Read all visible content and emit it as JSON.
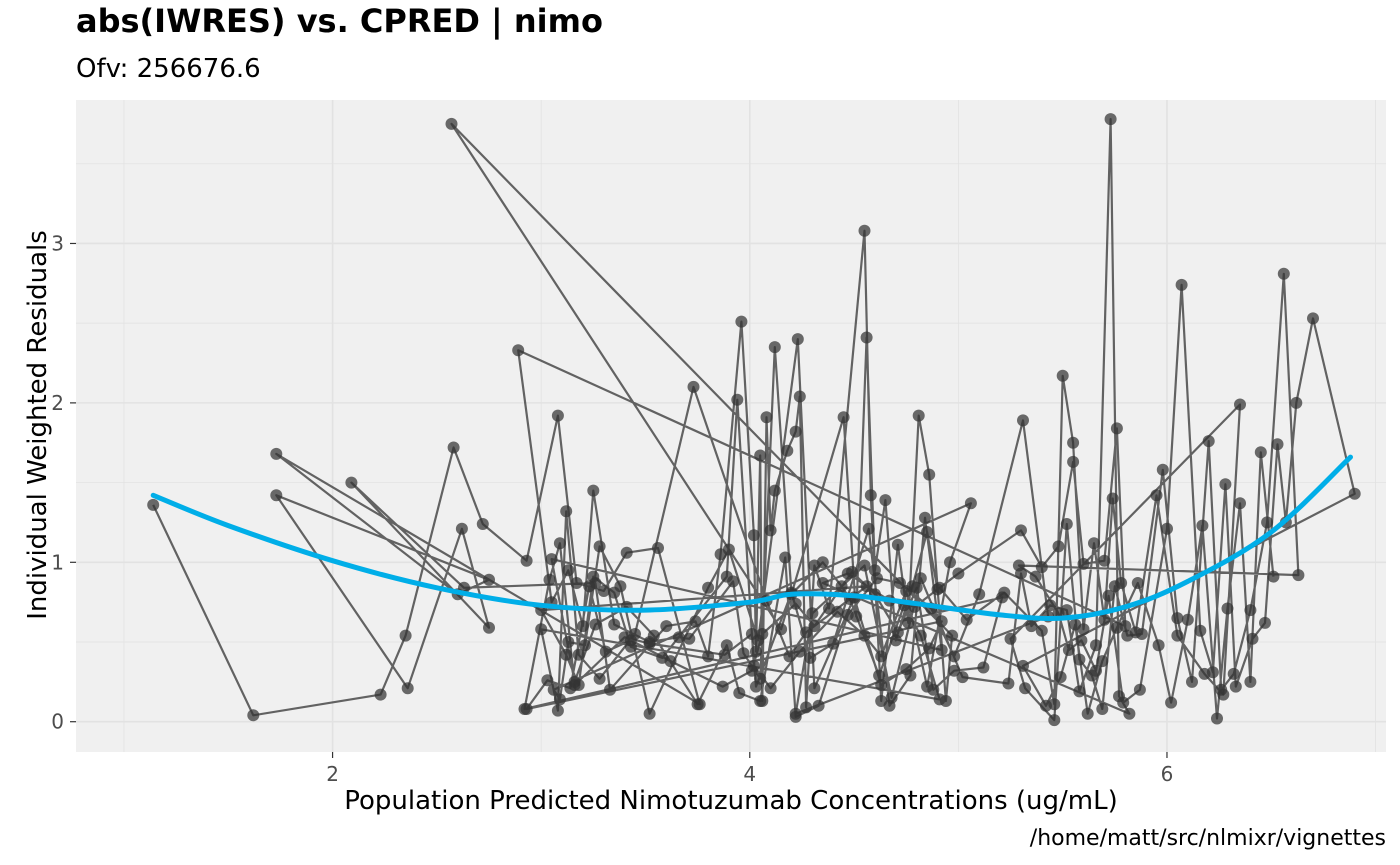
{
  "title": "abs(IWRES) vs. CPRED | nimo",
  "subtitle": "Ofv: 256676.6",
  "caption": "/home/matt/src/nlmixr/vignettes",
  "colors": {
    "panel": "#f0f0f0",
    "grid": "#e2e2e2",
    "points": "#333333",
    "smooth": "#00aee8"
  },
  "chart_data": {
    "type": "scatter",
    "title": "abs(IWRES) vs. CPRED | nimo",
    "subtitle": "Ofv: 256676.6",
    "xlabel": "Population Predicted Nimotuzumab Concentrations (ug/mL)",
    "ylabel": "Individual Weighted Residuals",
    "xlim": [
      0.77,
      7.05
    ],
    "ylim": [
      -0.19,
      3.9
    ],
    "x_ticks": [
      2,
      4,
      6
    ],
    "x_tick_labels": [
      "2",
      "4",
      "6"
    ],
    "y_ticks": [
      0,
      1,
      2,
      3
    ],
    "y_tick_labels": [
      "0",
      "1",
      "2",
      "3"
    ],
    "grid": true,
    "legend": "none",
    "series": [
      {
        "values": [
          [
            1.14,
            1.36
          ],
          [
            1.62,
            0.04
          ],
          [
            2.23,
            0.17
          ],
          [
            2.35,
            0.54
          ],
          [
            2.58,
            1.72
          ],
          [
            2.72,
            1.24
          ],
          [
            2.93,
            1.01
          ],
          [
            3.08,
            1.92
          ],
          [
            3.17,
            0.87
          ],
          [
            3.3,
            0.82
          ],
          [
            3.41,
            1.06
          ],
          [
            3.56,
            1.09
          ],
          [
            3.76,
            0.11
          ],
          [
            1.73,
            1.68
          ],
          [
            2.6,
            0.8
          ],
          [
            2.75,
            0.89
          ],
          [
            1.73,
            1.42
          ],
          [
            2.36,
            0.21
          ],
          [
            2.62,
            1.21
          ],
          [
            2.75,
            0.59
          ],
          [
            2.09,
            1.5
          ],
          [
            2.63,
            0.84
          ],
          [
            3.26,
            0.87
          ],
          [
            3.33,
            0.2
          ],
          [
            3.6,
            0.6
          ],
          [
            3.74,
            0.63
          ],
          [
            3.8,
            0.41
          ],
          [
            3.86,
            1.05
          ],
          [
            3.96,
            2.51
          ],
          [
            4.02,
            1.17
          ],
          [
            4.03,
            0.44
          ],
          [
            4.05,
            1.67
          ],
          [
            4.06,
            0.13
          ],
          [
            4.08,
            1.91
          ],
          [
            4.1,
            1.2
          ],
          [
            4.12,
            1.45
          ],
          [
            4.18,
            1.7
          ],
          [
            4.22,
            1.82
          ],
          [
            4.24,
            2.04
          ],
          [
            4.27,
            0.09
          ],
          [
            4.31,
            0.98
          ],
          [
            4.38,
            0.71
          ],
          [
            4.55,
            3.08
          ],
          [
            4.58,
            1.42
          ],
          [
            4.63,
            0.13
          ],
          [
            4.71,
            1.11
          ],
          [
            4.76,
            0.62
          ],
          [
            4.81,
            1.92
          ],
          [
            4.86,
            1.55
          ],
          [
            4.94,
            0.13
          ],
          [
            4.97,
            0.54
          ],
          [
            2.57,
            3.75
          ],
          [
            4.15,
            0.58
          ],
          [
            4.45,
            1.91
          ],
          [
            4.51,
            0.66
          ],
          [
            4.56,
            2.41
          ],
          [
            4.6,
            0.95
          ],
          [
            4.65,
            1.39
          ],
          [
            4.7,
            0.51
          ],
          [
            4.78,
            0.85
          ],
          [
            4.85,
            1.19
          ],
          [
            4.9,
            0.83
          ],
          [
            5.0,
            0.93
          ],
          [
            5.3,
            1.2
          ],
          [
            5.4,
            0.97
          ],
          [
            5.48,
            1.1
          ],
          [
            5.55,
            1.63
          ],
          [
            5.6,
            0.99
          ],
          [
            5.7,
            1.01
          ],
          [
            5.76,
            1.84
          ],
          [
            5.8,
            0.6
          ],
          [
            2.89,
            2.33
          ],
          [
            3.05,
            0.75
          ],
          [
            3.13,
            0.95
          ],
          [
            3.2,
            0.6
          ],
          [
            3.25,
            1.45
          ],
          [
            3.35,
            0.61
          ],
          [
            3.52,
            0.5
          ],
          [
            3.66,
            0.53
          ],
          [
            3.71,
            0.52
          ],
          [
            3.92,
            0.88
          ],
          [
            3.97,
            0.43
          ],
          [
            4.05,
            0.27
          ],
          [
            4.12,
            2.35
          ],
          [
            4.2,
            0.8
          ],
          [
            4.35,
            1.0
          ],
          [
            4.44,
            0.85
          ],
          [
            4.48,
            0.77
          ],
          [
            4.62,
            0.29
          ],
          [
            4.74,
            0.73
          ],
          [
            4.82,
            0.54
          ],
          [
            4.91,
            0.14
          ],
          [
            3.0,
            0.58
          ],
          [
            3.08,
            0.07
          ],
          [
            3.12,
            1.32
          ],
          [
            3.18,
            0.42
          ],
          [
            3.28,
            0.27
          ],
          [
            3.45,
            0.55
          ],
          [
            3.73,
            2.1
          ],
          [
            4.08,
            0.76
          ],
          [
            4.19,
            0.41
          ],
          [
            4.27,
            0.56
          ],
          [
            4.56,
            0.85
          ],
          [
            3.0,
            0.7
          ],
          [
            3.12,
            0.42
          ],
          [
            3.18,
            0.23
          ],
          [
            3.25,
            0.91
          ],
          [
            3.35,
            0.81
          ],
          [
            3.43,
            0.47
          ],
          [
            3.58,
            0.4
          ],
          [
            3.89,
            0.91
          ],
          [
            3.94,
            2.02
          ],
          [
            4.02,
            0.35
          ],
          [
            4.1,
            0.21
          ],
          [
            4.24,
            0.44
          ],
          [
            4.42,
            0.69
          ],
          [
            4.55,
            0.54
          ],
          [
            4.63,
            0.41
          ],
          [
            4.75,
            0.82
          ],
          [
            4.85,
            0.22
          ],
          [
            4.96,
            1.0
          ],
          [
            5.06,
            1.37
          ],
          [
            3.06,
            0.2
          ],
          [
            3.09,
            0.14
          ],
          [
            3.13,
            0.5
          ],
          [
            3.21,
            0.48
          ],
          [
            3.28,
            1.1
          ],
          [
            3.38,
            0.85
          ],
          [
            3.52,
            0.05
          ],
          [
            3.8,
            0.84
          ],
          [
            3.9,
            1.08
          ],
          [
            4.04,
            0.51
          ],
          [
            4.23,
            2.4
          ],
          [
            4.31,
            0.21
          ],
          [
            4.5,
            0.78
          ],
          [
            4.63,
            0.23
          ],
          [
            4.75,
            0.33
          ],
          [
            4.86,
            0.46
          ],
          [
            4.92,
            0.63
          ],
          [
            2.93,
            0.08
          ],
          [
            3.03,
            0.26
          ],
          [
            3.14,
            0.21
          ],
          [
            3.23,
            0.85
          ],
          [
            3.31,
            0.44
          ],
          [
            3.43,
            0.51
          ],
          [
            3.62,
            0.38
          ],
          [
            3.87,
            0.22
          ],
          [
            4.01,
            0.32
          ],
          [
            4.06,
            0.55
          ],
          [
            4.22,
            0.74
          ],
          [
            4.31,
            0.6
          ],
          [
            4.49,
            0.94
          ],
          [
            4.6,
            0.8
          ],
          [
            4.71,
            0.56
          ],
          [
            4.8,
            0.84
          ],
          [
            4.88,
            0.2
          ],
          [
            4.98,
            0.32
          ],
          [
            5.12,
            0.34
          ],
          [
            5.21,
            0.78
          ],
          [
            2.92,
            0.08
          ],
          [
            3.04,
            0.89
          ],
          [
            3.09,
            1.12
          ],
          [
            3.16,
            0.23
          ],
          [
            3.4,
            0.53
          ],
          [
            3.52,
            0.49
          ],
          [
            3.88,
            0.42
          ],
          [
            4.01,
            0.55
          ],
          [
            4.03,
            0.22
          ],
          [
            4.2,
            0.81
          ],
          [
            4.29,
            0.4
          ],
          [
            4.4,
            0.49
          ],
          [
            4.57,
            1.21
          ],
          [
            4.67,
            0.1
          ],
          [
            4.77,
            0.29
          ],
          [
            4.84,
            1.28
          ],
          [
            4.92,
            0.45
          ],
          [
            3.05,
            1.02
          ],
          [
            3.16,
            0.25
          ],
          [
            3.26,
            0.61
          ],
          [
            3.41,
            0.72
          ],
          [
            3.54,
            0.54
          ],
          [
            3.75,
            0.11
          ],
          [
            3.89,
            0.48
          ],
          [
            3.95,
            0.18
          ],
          [
            4.05,
            0.13
          ],
          [
            4.17,
            1.03
          ],
          [
            4.22,
            0.03
          ],
          [
            4.33,
            0.1
          ],
          [
            4.47,
            0.67
          ],
          [
            4.61,
            0.9
          ],
          [
            4.72,
            0.87
          ],
          [
            4.87,
            0.71
          ],
          [
            4.98,
            0.41
          ],
          [
            5.1,
            0.8
          ],
          [
            5.31,
            1.89
          ],
          [
            5.43,
            0.66
          ],
          [
            4.22,
            0.05
          ],
          [
            4.3,
            0.68
          ],
          [
            4.55,
            0.98
          ],
          [
            4.68,
            0.15
          ],
          [
            4.82,
            0.9
          ],
          [
            5.02,
            0.28
          ],
          [
            5.24,
            0.24
          ],
          [
            5.3,
            0.93
          ],
          [
            5.35,
            0.6
          ],
          [
            5.44,
            0.73
          ],
          [
            5.52,
            0.7
          ],
          [
            5.58,
            0.19
          ],
          [
            5.66,
            0.48
          ],
          [
            5.73,
            3.78
          ],
          [
            5.77,
            0.16
          ],
          [
            5.82,
            0.05
          ],
          [
            4.35,
            0.87
          ],
          [
            4.47,
            0.93
          ],
          [
            4.67,
            0.76
          ],
          [
            4.79,
            0.72
          ],
          [
            4.91,
            0.84
          ],
          [
            5.04,
            0.64
          ],
          [
            5.22,
            0.81
          ],
          [
            5.4,
            0.57
          ],
          [
            5.46,
            0.11
          ],
          [
            5.5,
            2.17
          ],
          [
            5.55,
            1.75
          ],
          [
            5.6,
            0.58
          ],
          [
            5.65,
            1.12
          ],
          [
            5.7,
            0.64
          ],
          [
            5.74,
            1.4
          ],
          [
            5.78,
            0.87
          ],
          [
            5.85,
            0.56
          ],
          [
            5.95,
            1.42
          ],
          [
            6.05,
            0.54
          ],
          [
            6.18,
            0.3
          ],
          [
            6.27,
            0.17
          ],
          [
            6.35,
            1.99
          ],
          [
            5.25,
            0.52
          ],
          [
            5.32,
            0.21
          ],
          [
            5.46,
            0.01
          ],
          [
            5.52,
            1.24
          ],
          [
            5.58,
            0.39
          ],
          [
            5.64,
            0.29
          ],
          [
            5.69,
            0.08
          ],
          [
            5.75,
            0.85
          ],
          [
            5.81,
            0.54
          ],
          [
            5.88,
            0.55
          ],
          [
            5.98,
            1.58
          ],
          [
            6.05,
            0.65
          ],
          [
            6.12,
            0.25
          ],
          [
            6.2,
            1.76
          ],
          [
            6.26,
            0.2
          ],
          [
            6.32,
            0.3
          ],
          [
            6.4,
            0.7
          ],
          [
            6.48,
            1.25
          ],
          [
            6.56,
            2.81
          ],
          [
            6.63,
            0.92
          ],
          [
            5.29,
            0.98
          ],
          [
            5.37,
            0.91
          ],
          [
            5.48,
            0.68
          ],
          [
            5.53,
            0.45
          ],
          [
            5.59,
            0.51
          ],
          [
            5.66,
            0.32
          ],
          [
            5.72,
            0.79
          ],
          [
            5.79,
            0.12
          ],
          [
            5.87,
            0.2
          ],
          [
            6.0,
            1.21
          ],
          [
            6.07,
            2.74
          ],
          [
            6.16,
            0.57
          ],
          [
            6.22,
            0.31
          ],
          [
            6.28,
            1.49
          ],
          [
            6.33,
            0.22
          ],
          [
            6.41,
            0.52
          ],
          [
            6.47,
            0.62
          ],
          [
            6.53,
            1.74
          ],
          [
            6.57,
            1.25
          ],
          [
            6.62,
            2.0
          ],
          [
            6.7,
            2.53
          ],
          [
            6.9,
            1.43
          ],
          [
            5.31,
            0.35
          ],
          [
            5.42,
            0.1
          ],
          [
            5.49,
            0.28
          ],
          [
            5.56,
            0.61
          ],
          [
            5.62,
            0.05
          ],
          [
            5.69,
            0.38
          ],
          [
            5.76,
            0.59
          ],
          [
            5.86,
            0.87
          ],
          [
            5.96,
            0.48
          ],
          [
            6.02,
            0.12
          ],
          [
            6.1,
            0.64
          ],
          [
            6.17,
            1.23
          ],
          [
            6.24,
            0.02
          ],
          [
            6.29,
            0.71
          ],
          [
            6.35,
            1.37
          ],
          [
            6.4,
            0.25
          ],
          [
            6.45,
            1.69
          ],
          [
            6.51,
            0.91
          ]
        ]
      }
    ],
    "smooth": {
      "name": "loess",
      "x": [
        1.14,
        1.5,
        2.0,
        2.5,
        3.0,
        3.5,
        4.0,
        4.2,
        4.5,
        4.8,
        5.2,
        5.5,
        5.8,
        6.1,
        6.5,
        6.88
      ],
      "y": [
        1.42,
        1.23,
        1.01,
        0.84,
        0.73,
        0.7,
        0.75,
        0.8,
        0.79,
        0.74,
        0.67,
        0.65,
        0.72,
        0.88,
        1.19,
        1.66
      ]
    }
  }
}
